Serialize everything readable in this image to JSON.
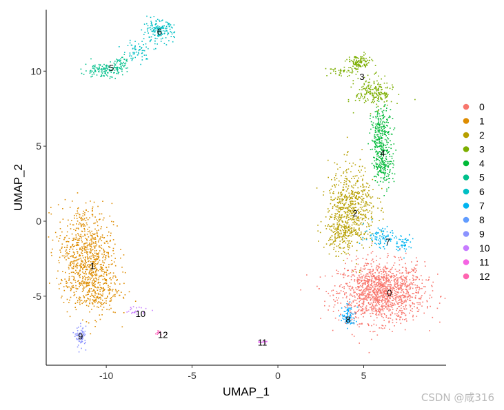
{
  "chart_data": {
    "type": "scatter",
    "title": "",
    "xlabel": "UMAP_1",
    "ylabel": "UMAP_2",
    "xlim": [
      -13.5,
      9.8
    ],
    "ylim": [
      -9.6,
      14.1
    ],
    "xticks": [
      -10,
      -5,
      0,
      5
    ],
    "yticks": [
      -5,
      0,
      5,
      10
    ],
    "xtick_labels": [
      "-10",
      "-5",
      "0",
      "5"
    ],
    "ytick_labels": [
      "-5",
      "0",
      "5",
      "10"
    ],
    "grid": false,
    "legend_position": "right",
    "series": [
      {
        "name": "0",
        "color": "#F8766D",
        "center": [
          6.0,
          -4.8
        ],
        "label_pos": [
          6.5,
          -4.8
        ]
      },
      {
        "name": "1",
        "color": "#DE8C00",
        "center": [
          -11.0,
          -2.8
        ],
        "label_pos": [
          -10.8,
          -3.0
        ]
      },
      {
        "name": "2",
        "color": "#B79F00",
        "center": [
          4.0,
          0.5
        ],
        "label_pos": [
          4.5,
          0.5
        ]
      },
      {
        "name": "3",
        "color": "#7CAE00",
        "center": [
          5.0,
          9.3
        ],
        "label_pos": [
          4.9,
          9.6
        ]
      },
      {
        "name": "4",
        "color": "#00BA38",
        "center": [
          6.0,
          5.0
        ],
        "label_pos": [
          6.1,
          4.5
        ]
      },
      {
        "name": "5",
        "color": "#00C08B",
        "center": [
          -10.0,
          10.3
        ],
        "label_pos": [
          -9.7,
          10.2
        ]
      },
      {
        "name": "6",
        "color": "#00BFC4",
        "center": [
          -7.0,
          12.5
        ],
        "label_pos": [
          -6.9,
          12.6
        ]
      },
      {
        "name": "7",
        "color": "#00B4F0",
        "center": [
          6.8,
          -1.3
        ],
        "label_pos": [
          6.4,
          -1.4
        ]
      },
      {
        "name": "8",
        "color": "#619CFF",
        "center": [
          4.1,
          -6.3
        ],
        "label_pos": [
          4.1,
          -6.6
        ]
      },
      {
        "name": "9",
        "color": "#C77CFF",
        "center": [
          -11.5,
          -7.6
        ],
        "label_pos": [
          -11.5,
          -7.7
        ]
      },
      {
        "name": "10",
        "color": "#F564E3",
        "center": [
          -8.3,
          -6.0
        ],
        "label_pos": [
          -8.0,
          -6.2
        ]
      },
      {
        "name": "11",
        "color": "#FF64B0",
        "center": [
          -0.9,
          -8.0
        ],
        "label_pos": [
          -0.9,
          -8.1
        ]
      },
      {
        "name": "12",
        "color": "#FF64B0",
        "center": [
          -7.0,
          -7.4
        ],
        "label_pos": [
          -6.7,
          -7.6
        ]
      }
    ],
    "legend_colors": [
      "#F8766D",
      "#DE8C00",
      "#B79F00",
      "#7CAE00",
      "#00BA38",
      "#00C08B",
      "#00BFC4",
      "#00B4F0",
      "#619CFF",
      "#8B93FF",
      "#C77CFF",
      "#F564E3",
      "#FF64B0"
    ],
    "cluster_colors": [
      "#F8766D",
      "#DE8C00",
      "#B79F00",
      "#7CAE00",
      "#00BA38",
      "#00C08B",
      "#00BFC4",
      "#00B4F0",
      "#00A9FF",
      "#8B93FF",
      "#C77CFF",
      "#E76BF3",
      "#FF62BC"
    ]
  },
  "watermark": "CSDN @咸316"
}
